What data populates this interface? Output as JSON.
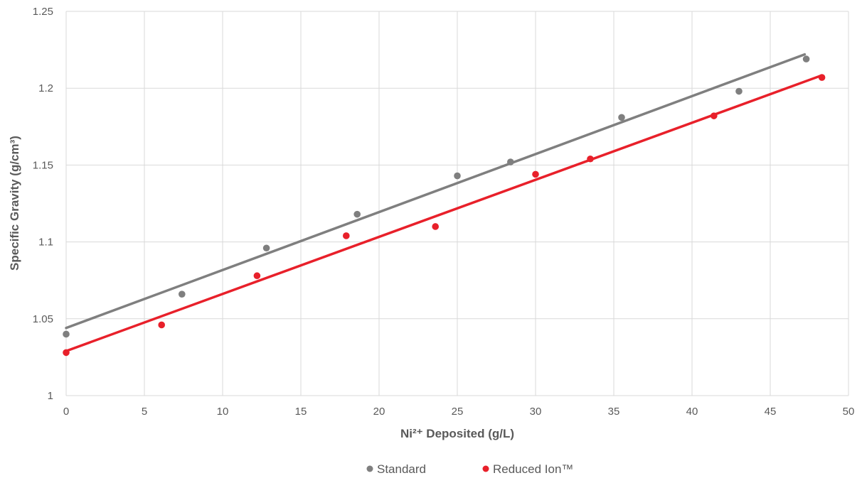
{
  "chart_data": {
    "type": "scatter",
    "title": "",
    "xlabel": "Ni²⁺ Deposited (g/L)",
    "ylabel": "Specific Gravity (g/cm³)",
    "xlim": [
      0,
      50
    ],
    "ylim": [
      1,
      1.25
    ],
    "x_ticks": [
      "0",
      "5",
      "10",
      "15",
      "20",
      "25",
      "30",
      "35",
      "40",
      "45",
      "50"
    ],
    "y_ticks": [
      "1",
      "1.05",
      "1.1",
      "1.15",
      "1.2",
      "1.25"
    ],
    "grid": true,
    "legend_position": "bottom",
    "series": [
      {
        "name": "Standard",
        "color": "#7f7f7f",
        "points": [
          [
            0,
            1.04
          ],
          [
            7.4,
            1.066
          ],
          [
            12.8,
            1.096
          ],
          [
            18.6,
            1.118
          ],
          [
            25,
            1.143
          ],
          [
            28.4,
            1.152
          ],
          [
            35.5,
            1.181
          ],
          [
            43,
            1.198
          ],
          [
            47.3,
            1.219
          ]
        ],
        "trendline": [
          [
            0,
            1.044
          ],
          [
            47.2,
            1.222
          ]
        ]
      },
      {
        "name": "Reduced Ion™",
        "color": "#e8202a",
        "points": [
          [
            0,
            1.028
          ],
          [
            6.1,
            1.046
          ],
          [
            12.2,
            1.078
          ],
          [
            17.9,
            1.104
          ],
          [
            23.6,
            1.11
          ],
          [
            30,
            1.144
          ],
          [
            33.5,
            1.154
          ],
          [
            41.4,
            1.182
          ],
          [
            48.3,
            1.207
          ]
        ],
        "trendline": [
          [
            0,
            1.029
          ],
          [
            48.2,
            1.208
          ]
        ]
      }
    ]
  }
}
